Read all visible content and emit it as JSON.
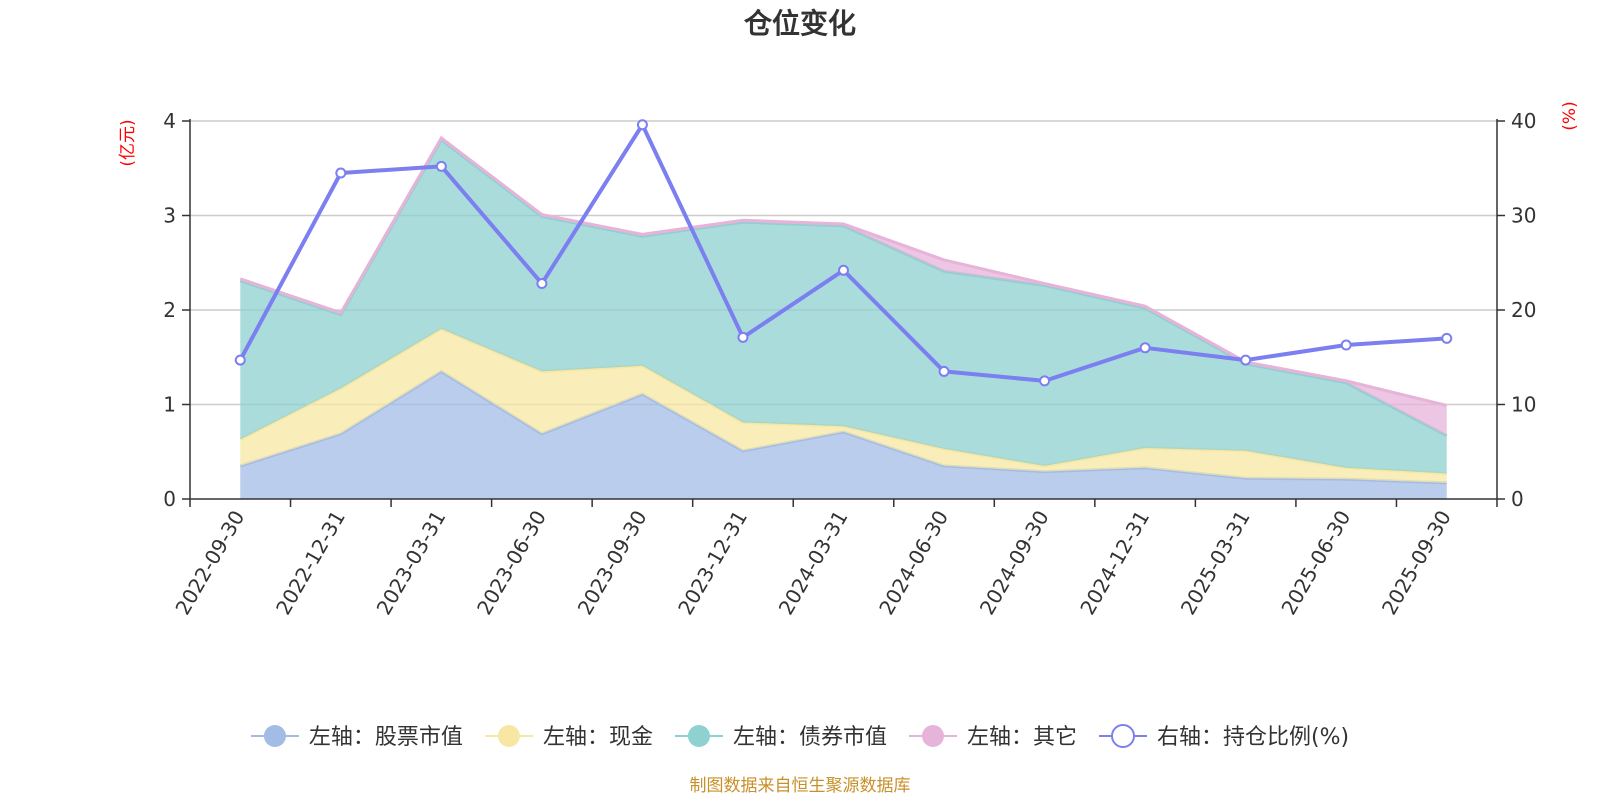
{
  "chart_data": {
    "type": "area",
    "title": "仓位变化",
    "left_axis": {
      "unit": "(亿元)",
      "min": 0,
      "max": 4,
      "ticks": [
        0,
        1,
        2,
        3,
        4
      ]
    },
    "right_axis": {
      "unit": "(%)",
      "min": 0,
      "max": 40,
      "ticks": [
        0,
        10,
        20,
        30,
        40
      ]
    },
    "categories": [
      "2022-09-30",
      "2022-12-31",
      "2023-03-31",
      "2023-06-30",
      "2023-09-30",
      "2023-12-31",
      "2024-03-31",
      "2024-06-30",
      "2024-09-30",
      "2024-12-31",
      "2025-03-31",
      "2025-06-30",
      "2025-09-30"
    ],
    "stacked_series": [
      {
        "name": "左轴：股票市值",
        "axis": "left",
        "color": "#a3bce6",
        "values": [
          0.35,
          0.69,
          1.35,
          0.69,
          1.11,
          0.51,
          0.71,
          0.35,
          0.29,
          0.33,
          0.22,
          0.21,
          0.17
        ]
      },
      {
        "name": "左轴：现金",
        "axis": "left",
        "color": "#f7e7a3",
        "values": [
          0.28,
          0.48,
          0.45,
          0.66,
          0.3,
          0.3,
          0.06,
          0.18,
          0.06,
          0.21,
          0.29,
          0.12,
          0.1
        ]
      },
      {
        "name": "左轴：债券市值",
        "axis": "left",
        "color": "#8fd0d0",
        "values": [
          1.68,
          0.78,
          2.0,
          1.64,
          1.37,
          2.12,
          2.12,
          1.88,
          1.91,
          1.48,
          0.92,
          0.9,
          0.4
        ]
      },
      {
        "name": "左轴：其它",
        "axis": "left",
        "color": "#e6b3d9",
        "values": [
          0.02,
          0.02,
          0.02,
          0.02,
          0.02,
          0.02,
          0.02,
          0.12,
          0.02,
          0.02,
          0.02,
          0.02,
          0.32
        ]
      }
    ],
    "line_series": {
      "name": "右轴：持仓比例(%)",
      "axis": "right",
      "color": "#7b7ff0",
      "values": [
        14.7,
        34.5,
        35.2,
        22.8,
        39.6,
        17.1,
        24.2,
        13.5,
        12.5,
        16.0,
        14.7,
        16.3,
        17.0
      ]
    },
    "legend_position": "bottom",
    "grid": true
  },
  "footer": {
    "source_text": "制图数据来自恒生聚源数据库"
  },
  "colors": {
    "unit_label": "#ff0000",
    "source_text": "#c8902a",
    "axis": "#333333",
    "grid": "#cccccc"
  }
}
